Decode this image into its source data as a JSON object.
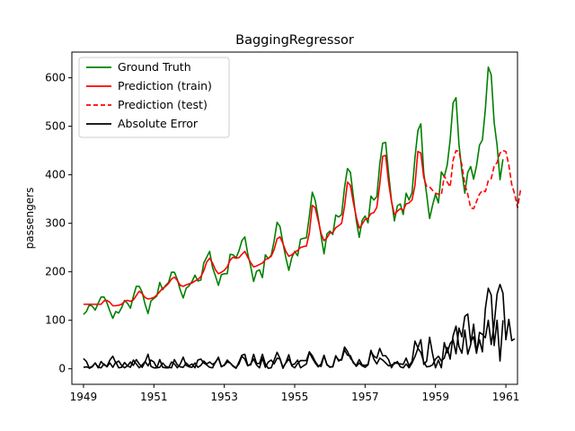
{
  "chart_data": {
    "type": "line",
    "title": "BaggingRegressor",
    "xlabel": "",
    "ylabel": "passengers",
    "xlim": [
      1948.67,
      1961.33
    ],
    "ylim": [
      -32,
      653
    ],
    "xticks": [
      1949,
      1951,
      1953,
      1955,
      1957,
      1959,
      1961
    ],
    "xtick_labels": [
      "1949",
      "1951",
      "1953",
      "1955",
      "1957",
      "1959",
      "1961"
    ],
    "yticks": [
      0,
      100,
      200,
      300,
      400,
      500,
      600
    ],
    "ytick_labels": [
      "0",
      "100",
      "200",
      "300",
      "400",
      "500",
      "600"
    ],
    "grid": false,
    "legend_position": "top-left",
    "series": [
      {
        "name": "Ground Truth",
        "color": "#008000",
        "style": "solid",
        "x_start": 1949.0,
        "x_step": 0.083333,
        "values": [
          112,
          118,
          132,
          129,
          121,
          135,
          148,
          148,
          136,
          119,
          104,
          118,
          115,
          126,
          141,
          135,
          125,
          149,
          170,
          170,
          158,
          133,
          114,
          140,
          145,
          150,
          178,
          163,
          172,
          178,
          199,
          199,
          184,
          162,
          146,
          166,
          171,
          180,
          193,
          181,
          183,
          218,
          230,
          242,
          209,
          191,
          172,
          194,
          196,
          196,
          236,
          235,
          229,
          243,
          264,
          272,
          237,
          211,
          180,
          201,
          204,
          188,
          235,
          227,
          234,
          264,
          302,
          293,
          259,
          229,
          203,
          229,
          242,
          233,
          267,
          269,
          270,
          315,
          364,
          347,
          312,
          274,
          237,
          278,
          284,
          277,
          317,
          313,
          318,
          374,
          413,
          405,
          355,
          306,
          271,
          306,
          315,
          301,
          356,
          348,
          355,
          422,
          465,
          467,
          404,
          347,
          305,
          336,
          340,
          318,
          362,
          348,
          363,
          435,
          491,
          505,
          404,
          359,
          310,
          337,
          360,
          342,
          406,
          396,
          420,
          472,
          548,
          559,
          463,
          407,
          362,
          405,
          417,
          391,
          419,
          461,
          472,
          535,
          622,
          606,
          508,
          461,
          390,
          432
        ]
      },
      {
        "name": "Prediction (train)",
        "color": "#ff0000",
        "style": "solid",
        "x_start": 1949.0,
        "x_step": 0.083333,
        "values": [
          133,
          133,
          133,
          133,
          133,
          133,
          133,
          140,
          141,
          137,
          130,
          130,
          131,
          133,
          139,
          141,
          139,
          142,
          151,
          160,
          155,
          147,
          144,
          145,
          147,
          152,
          159,
          166,
          170,
          176,
          185,
          189,
          182,
          172,
          170,
          173,
          175,
          177,
          181,
          184,
          190,
          202,
          220,
          228,
          218,
          204,
          196,
          199,
          203,
          210,
          224,
          230,
          228,
          229,
          236,
          242,
          230,
          219,
          210,
          212,
          215,
          218,
          225,
          228,
          232,
          246,
          268,
          272,
          258,
          242,
          232,
          235,
          240,
          244,
          250,
          252,
          253,
          280,
          337,
          332,
          306,
          279,
          264,
          270,
          280,
          281,
          291,
          295,
          300,
          335,
          385,
          378,
          343,
          313,
          290,
          298,
          308,
          310,
          320,
          322,
          333,
          380,
          438,
          440,
          385,
          345,
          318,
          325,
          330,
          327,
          340,
          342,
          348,
          378,
          448,
          445,
          395,
          375
        ]
      },
      {
        "name": "Prediction (test)",
        "color": "#ff0000",
        "style": "dashed",
        "x_start": 1958.833333,
        "x_step": 0.083333,
        "values": [
          375,
          368,
          362,
          360,
          358,
          398,
          385,
          375,
          430,
          450,
          448,
          420,
          380,
          360,
          332,
          330,
          345,
          360,
          368,
          365,
          388,
          392,
          418,
          425,
          445,
          450,
          448,
          420,
          380,
          360,
          332,
          370
        ]
      },
      {
        "name": "Absolute Error",
        "color": "#000000",
        "style": "solid",
        "x_start": 1949.0,
        "x_step": 0.083333,
        "values": [
          21,
          15,
          1,
          4,
          12,
          2,
          15,
          8,
          5,
          18,
          26,
          12,
          16,
          7,
          2,
          6,
          14,
          7,
          19,
          10,
          3,
          14,
          30,
          5,
          2,
          2,
          19,
          3,
          2,
          2,
          14,
          10,
          2,
          10,
          24,
          7,
          4,
          3,
          12,
          3,
          7,
          16,
          10,
          14,
          9,
          13,
          24,
          5,
          7,
          14,
          12,
          5,
          1,
          14,
          28,
          30,
          7,
          8,
          30,
          11,
          11,
          30,
          10,
          1,
          2,
          18,
          34,
          21,
          1,
          13,
          29,
          6,
          2,
          11,
          17,
          17,
          17,
          35,
          27,
          15,
          6,
          5,
          27,
          8,
          4,
          4,
          26,
          18,
          18,
          39,
          28,
          27,
          12,
          7,
          19,
          8,
          7,
          9,
          36,
          26,
          22,
          42,
          27,
          27,
          19,
          2,
          13,
          11,
          10,
          9,
          22,
          6,
          15,
          57,
          43,
          60,
          9,
          16,
          65,
          31,
          2,
          18,
          2,
          54,
          33,
          52,
          60,
          31,
          84,
          66,
          108,
          113,
          55,
          66,
          32,
          75,
          71,
          64,
          100,
          50,
          91,
          154,
          174,
          156,
          60,
          102,
          58,
          62
        ]
      },
      {
        "name": "",
        "color": "#000000",
        "style": "solid",
        "x_start": 1949.0,
        "x_step": 0.083333,
        "values": [
          3,
          4,
          2,
          5,
          12,
          3,
          2,
          10,
          4,
          12,
          3,
          14,
          2,
          3,
          13,
          6,
          3,
          18,
          10,
          2,
          8,
          15,
          6,
          18,
          14,
          2,
          3,
          12,
          5,
          3,
          2,
          19,
          8,
          4,
          3,
          12,
          6,
          10,
          2,
          18,
          20,
          12,
          8,
          3,
          2,
          14,
          22,
          4,
          8,
          18,
          12,
          6,
          2,
          10,
          26,
          20,
          6,
          10,
          20,
          8,
          2,
          22,
          3,
          14,
          18,
          10,
          22,
          20,
          3,
          12,
          20,
          8,
          10,
          18,
          2,
          6,
          10,
          34,
          22,
          12,
          4,
          10,
          28,
          9,
          3,
          5,
          27,
          16,
          20,
          45,
          36,
          22,
          14,
          5,
          12,
          6,
          3,
          8,
          38,
          20,
          10,
          22,
          18,
          12,
          6,
          8,
          10,
          15,
          4,
          2,
          10,
          2,
          12,
          25,
          42,
          34,
          14,
          4,
          5,
          8,
          20,
          26,
          16,
          22,
          44,
          20,
          68,
          88,
          46,
          32,
          80,
          30,
          50,
          92,
          35,
          60,
          35,
          124,
          166,
          152,
          48,
          100,
          16,
          100
        ]
      }
    ]
  }
}
